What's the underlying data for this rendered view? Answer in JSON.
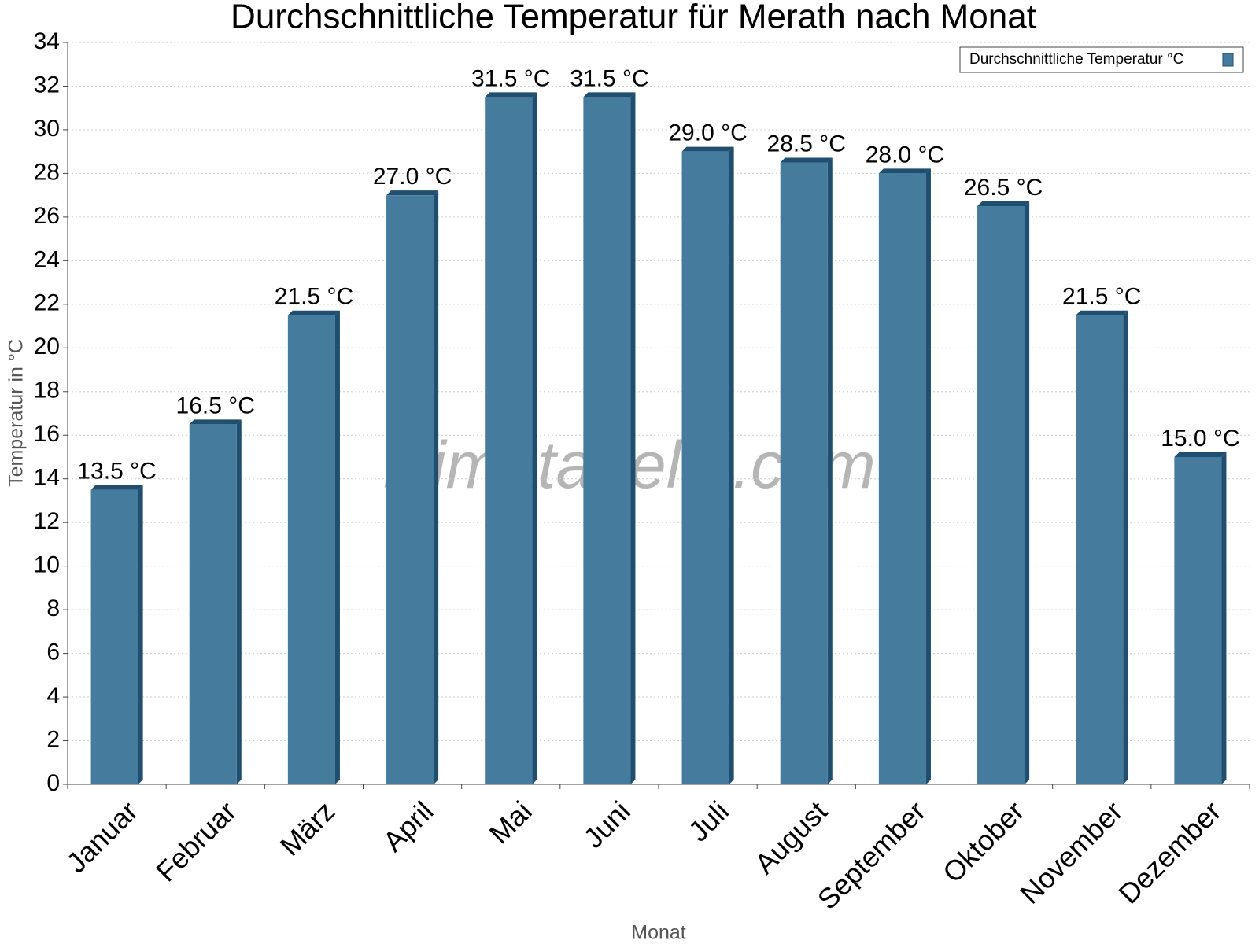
{
  "chart_data": {
    "type": "bar",
    "title": "Durchschnittliche Temperatur für Merath nach Monat",
    "watermark": "klimatabelle.com",
    "x_label": "Monat",
    "y_label": "Temperatur in °C",
    "categories": [
      "Januar",
      "Februar",
      "März",
      "April",
      "Mai",
      "Juni",
      "Juli",
      "August",
      "September",
      "Oktober",
      "November",
      "Dezember"
    ],
    "series": [
      {
        "name": "Durchschnittliche Temperatur °C",
        "color": "#457b9d",
        "values": [
          13.5,
          16.5,
          21.5,
          27.0,
          31.5,
          31.5,
          29.0,
          28.5,
          28.0,
          26.5,
          21.5,
          15.0
        ],
        "value_labels": [
          "13.5 °C",
          "16.5 °C",
          "21.5 °C",
          "27.0 °C",
          "31.5 °C",
          "31.5 °C",
          "29.0 °C",
          "28.5 °C",
          "28.0 °C",
          "26.5 °C",
          "21.5 °C",
          "15.0 °C"
        ]
      }
    ],
    "ylim": [
      0,
      34
    ],
    "yticks": [
      0,
      2,
      4,
      6,
      8,
      10,
      12,
      14,
      16,
      18,
      20,
      22,
      24,
      26,
      28,
      30,
      32,
      34
    ],
    "grid": true,
    "legend": "top-right"
  }
}
